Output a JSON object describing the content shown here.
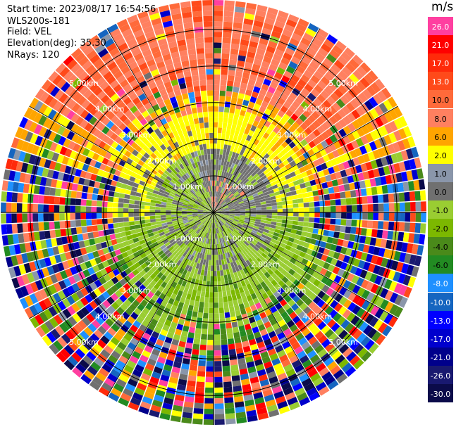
{
  "header": {
    "start_time": "Start time: 2023/08/17 16:54:56",
    "instrument": "WLS200s-181",
    "field": "Field: VEL",
    "elevation": "Elevation(deg): 35.30",
    "nrays": "NRays: 120"
  },
  "colorbar": {
    "unit": "m/s",
    "levels": [
      {
        "label": "26.0",
        "color": "#ff3fa0"
      },
      {
        "label": "21.0",
        "color": "#ff0000"
      },
      {
        "label": "17.0",
        "color": "#ff2a0a"
      },
      {
        "label": "13.0",
        "color": "#ff4a1a"
      },
      {
        "label": "10.0",
        "color": "#ff6a3a"
      },
      {
        "label": "8.0",
        "color": "#ff8060"
      },
      {
        "label": "6.0",
        "color": "#ffa500"
      },
      {
        "label": "2.0",
        "color": "#ffff00"
      },
      {
        "label": "1.0",
        "color": "#8a96aa"
      },
      {
        "label": "0.0",
        "color": "#707070"
      },
      {
        "label": "-1.0",
        "color": "#9acd32"
      },
      {
        "label": "-2.0",
        "color": "#7cb800"
      },
      {
        "label": "-4.0",
        "color": "#4a8a1a"
      },
      {
        "label": "-6.0",
        "color": "#228b22"
      },
      {
        "label": "-8.0",
        "color": "#1e90ff"
      },
      {
        "label": "-10.0",
        "color": "#1565c0"
      },
      {
        "label": "-13.0",
        "color": "#0000ff"
      },
      {
        "label": "-17.0",
        "color": "#0000cd"
      },
      {
        "label": "-21.0",
        "color": "#00008b"
      },
      {
        "label": "-26.0",
        "color": "#191970"
      },
      {
        "label": "-30.0",
        "color": "#0b0b4a"
      }
    ]
  },
  "chart_data": {
    "type": "heatmap",
    "projection": "polar (PPI)",
    "variable": "radial velocity",
    "units": "m/s",
    "n_rays": 120,
    "range_rings_km": [
      1,
      2,
      3,
      4,
      5
    ],
    "ring_labels": [
      "1.00km",
      "2.00km",
      "3.00km",
      "4.00km",
      "5.00km"
    ],
    "max_range_km": 5.8,
    "spoke_interval_deg": 30,
    "grid": true,
    "note_pattern": "near range (< ~1.8 km) mostly 0 to 1 m/s grey, with -1 to -2 m/s green in the west and south; ~2 km band yellow (2 m/s) to the north; far range north 8-17 m/s red/orange, south noisy mixed"
  }
}
